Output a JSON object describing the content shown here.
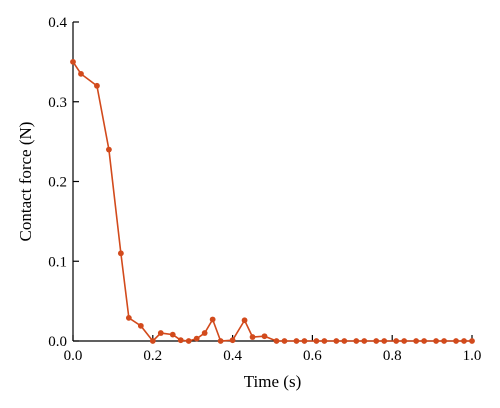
{
  "chart_data": {
    "type": "line",
    "xlabel": "Time (s)",
    "ylabel": "Contact force (N)",
    "xlim": [
      0,
      1.0
    ],
    "ylim": [
      0,
      0.4
    ],
    "xticks": [
      "0.0",
      "0.2",
      "0.4",
      "0.6",
      "0.8",
      "1.0"
    ],
    "yticks": [
      "0.0",
      "0.1",
      "0.2",
      "0.3",
      "0.4"
    ],
    "grid": false,
    "color": "#d24a1c",
    "series": [
      {
        "x": [
          0.0,
          0.02,
          0.06,
          0.09,
          0.12,
          0.14,
          0.17,
          0.2,
          0.22,
          0.25,
          0.27,
          0.29,
          0.31,
          0.33,
          0.35,
          0.37,
          0.4,
          0.43,
          0.45,
          0.48,
          0.51,
          0.53,
          0.56,
          0.58,
          0.61,
          0.63,
          0.66,
          0.68,
          0.71,
          0.73,
          0.76,
          0.78,
          0.81,
          0.83,
          0.86,
          0.88,
          0.91,
          0.93,
          0.96,
          0.98,
          1.0
        ],
        "y": [
          0.35,
          0.335,
          0.32,
          0.24,
          0.11,
          0.029,
          0.019,
          0.0,
          0.01,
          0.008,
          0.001,
          0.0,
          0.003,
          0.01,
          0.027,
          0.0,
          0.001,
          0.026,
          0.005,
          0.006,
          0.0,
          0.0,
          0.0,
          0.0,
          0.0,
          0.0,
          0.0,
          0.0,
          0.0,
          0.0,
          0.0,
          0.0,
          0.0,
          0.0,
          0.0,
          0.0,
          0.0,
          0.0,
          0.0,
          0.0,
          0.0
        ]
      }
    ]
  }
}
